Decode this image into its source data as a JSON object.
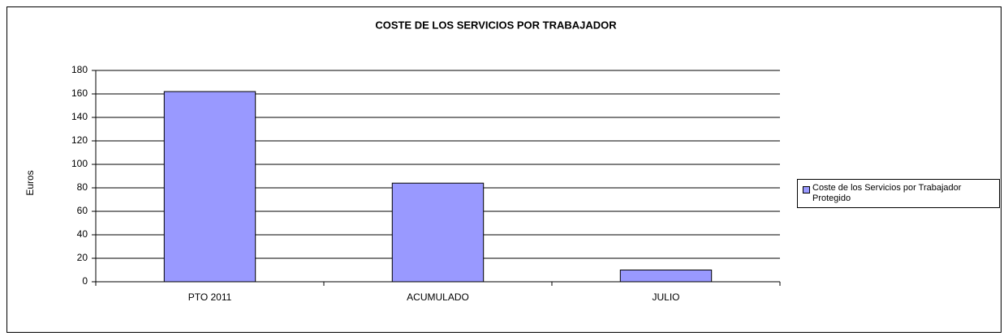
{
  "chart_data": {
    "type": "bar",
    "title": "COSTE DE LOS SERVICIOS POR TRABAJADOR",
    "y_label": "Euros",
    "categories": [
      "PTO 2011",
      "ACUMULADO",
      "JULIO"
    ],
    "series": [
      {
        "name": "Coste de los Servicios por Trabajador Protegido",
        "color": "#9999ff",
        "values": [
          162,
          84,
          10
        ]
      }
    ],
    "ylim": [
      0,
      180
    ],
    "yticks": [
      0,
      20,
      40,
      60,
      80,
      100,
      120,
      140,
      160,
      180
    ],
    "grid": true,
    "legend": "right"
  }
}
